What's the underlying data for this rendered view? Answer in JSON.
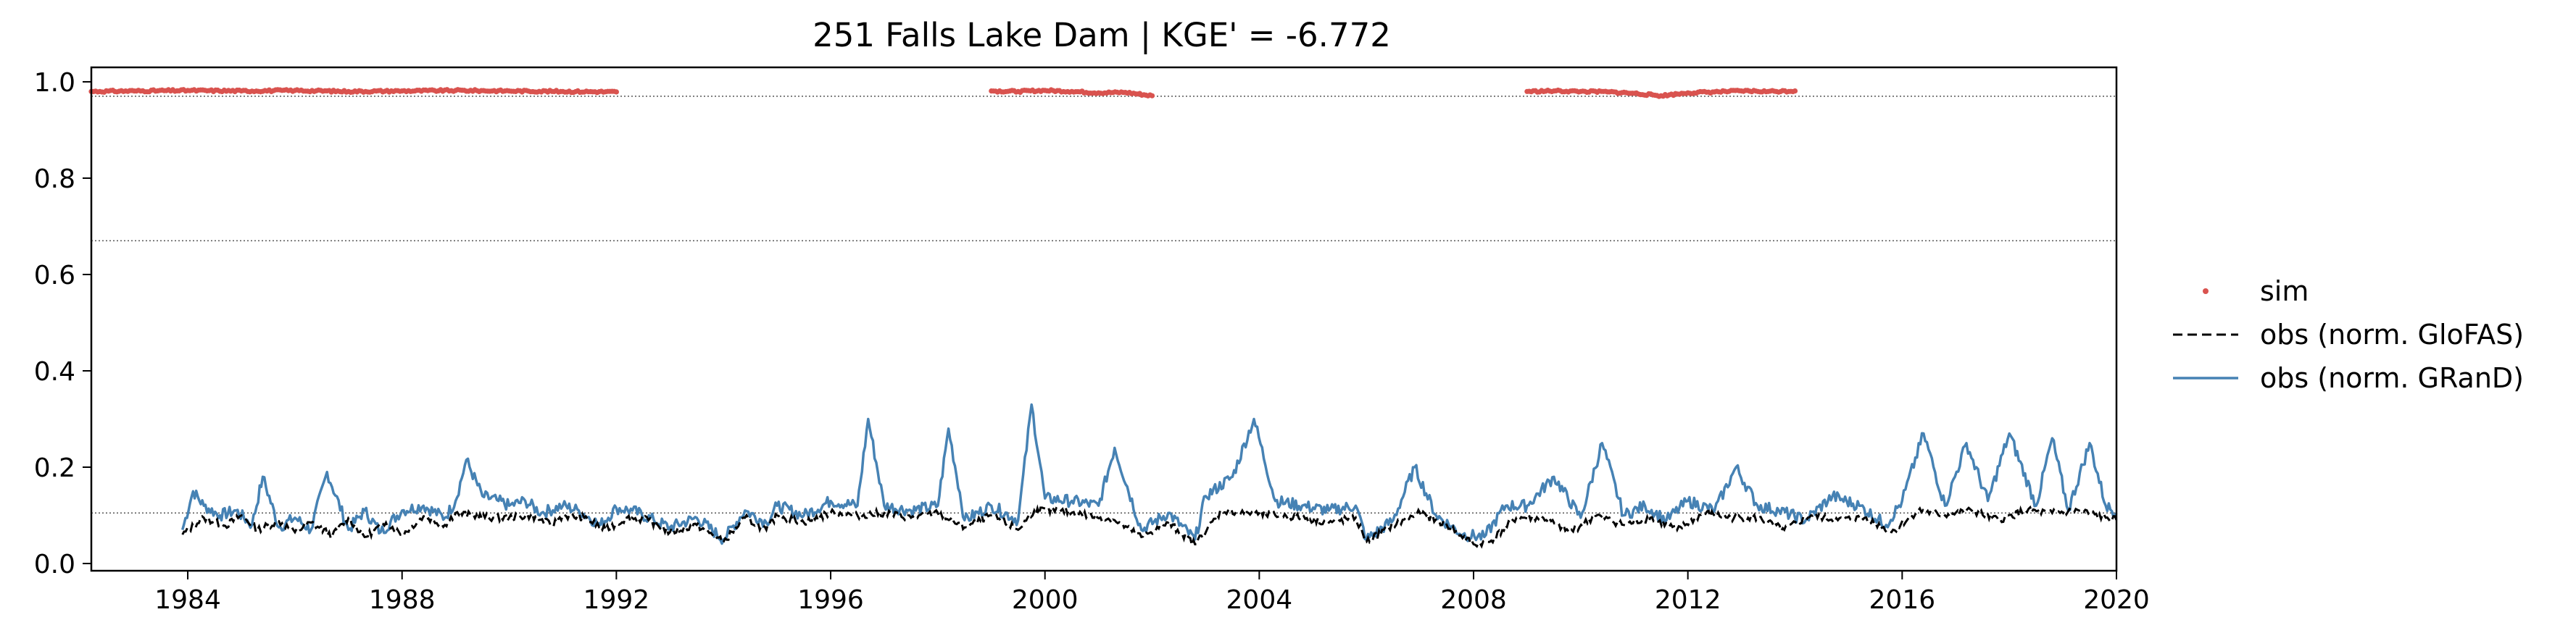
{
  "chart_data": {
    "type": "line",
    "title": "251  Falls Lake Dam | KGE' = -6.772",
    "xlabel": "",
    "ylabel": "",
    "xlim": [
      1982.2,
      2020.0
    ],
    "ylim": [
      -0.015,
      1.03
    ],
    "x_ticks": [
      1984,
      1988,
      1992,
      1996,
      2000,
      2004,
      2008,
      2012,
      2016,
      2020
    ],
    "x_tick_labels": [
      "1984",
      "1988",
      "1992",
      "1996",
      "2000",
      "2004",
      "2008",
      "2012",
      "2016",
      "2020"
    ],
    "y_ticks": [
      0.0,
      0.2,
      0.4,
      0.6,
      0.8,
      1.0
    ],
    "y_tick_labels": [
      "0.0",
      "0.2",
      "0.4",
      "0.6",
      "0.8",
      "1.0"
    ],
    "reference_lines": [
      0.97,
      0.67,
      0.105
    ],
    "grid": false,
    "legend_position": "right, outside plot",
    "legend": [
      "sim",
      "obs (norm. GloFAS)",
      "obs (norm. GRanD)"
    ],
    "colors": {
      "sim": "#d9534f",
      "glofas": "#000000",
      "grand": "#4682b4",
      "ref": "#555555"
    },
    "series": [
      {
        "name": "sim",
        "style": "points",
        "segments": [
          {
            "x": [
              1982.2,
              1983,
              1984,
              1985,
              1986,
              1987,
              1988,
              1989,
              1990,
              1991,
              1992.0
            ],
            "y": [
              0.98,
              0.981,
              0.982,
              0.981,
              0.982,
              0.98,
              0.981,
              0.982,
              0.981,
              0.98,
              0.979
            ]
          },
          {
            "x": [
              1999.0,
              1999.5,
              2000,
              2000.5,
              2001,
              2001.5,
              2002.0
            ],
            "y": [
              0.981,
              0.98,
              0.982,
              0.98,
              0.977,
              0.978,
              0.971
            ]
          },
          {
            "x": [
              2009.0,
              2009.5,
              2010,
              2010.5,
              2011,
              2011.5,
              2012,
              2012.5,
              2013,
              2013.5,
              2014.0
            ],
            "y": [
              0.98,
              0.981,
              0.98,
              0.979,
              0.976,
              0.971,
              0.977,
              0.979,
              0.981,
              0.98,
              0.981
            ]
          }
        ]
      },
      {
        "name": "obs (norm. GloFAS)",
        "style": "dashed",
        "x": [
          1983.9,
          1984.3,
          1984.7,
          1985.0,
          1985.3,
          1985.7,
          1986.0,
          1986.3,
          1986.7,
          1987.0,
          1987.3,
          1987.7,
          1988.0,
          1988.4,
          1988.8,
          1989.0,
          1989.3,
          1989.7,
          1990.0,
          1990.4,
          1990.8,
          1991.0,
          1991.4,
          1991.8,
          1992.2,
          1992.6,
          1993.0,
          1993.5,
          1994.0,
          1994.4,
          1994.8,
          1995.0,
          1995.5,
          1996.0,
          1996.5,
          1997.0,
          1997.5,
          1998.0,
          1998.5,
          1999.0,
          1999.5,
          1999.8,
          2000.3,
          2000.8,
          2001.3,
          2001.8,
          2002.3,
          2002.8,
          2003.3,
          2003.8,
          2004.3,
          2004.8,
          2005.3,
          2005.8,
          2006.0,
          2006.5,
          2007.0,
          2007.5,
          2008.0,
          2008.3,
          2008.8,
          2009.3,
          2009.8,
          2010.3,
          2010.8,
          2011.3,
          2011.8,
          2012.3,
          2012.8,
          2013.3,
          2013.8,
          2014.3,
          2014.8,
          2015.3,
          2015.8,
          2016.3,
          2016.8,
          2017.3,
          2017.8,
          2018.3,
          2018.8,
          2019.3,
          2019.8,
          2020.0
        ],
        "y": [
          0.06,
          0.095,
          0.078,
          0.1,
          0.07,
          0.088,
          0.065,
          0.085,
          0.058,
          0.095,
          0.055,
          0.085,
          0.06,
          0.098,
          0.08,
          0.105,
          0.1,
          0.095,
          0.095,
          0.1,
          0.08,
          0.1,
          0.095,
          0.07,
          0.095,
          0.09,
          0.065,
          0.08,
          0.045,
          0.095,
          0.07,
          0.1,
          0.085,
          0.105,
          0.1,
          0.105,
          0.095,
          0.105,
          0.075,
          0.1,
          0.07,
          0.11,
          0.11,
          0.1,
          0.09,
          0.055,
          0.085,
          0.04,
          0.11,
          0.105,
          0.1,
          0.095,
          0.085,
          0.095,
          0.045,
          0.08,
          0.105,
          0.08,
          0.04,
          0.045,
          0.095,
          0.095,
          0.065,
          0.1,
          0.08,
          0.095,
          0.07,
          0.105,
          0.095,
          0.095,
          0.07,
          0.1,
          0.09,
          0.095,
          0.065,
          0.11,
          0.1,
          0.11,
          0.09,
          0.11,
          0.105,
          0.11,
          0.095,
          0.09
        ]
      },
      {
        "name": "obs (norm. GRanD)",
        "style": "solid",
        "x": [
          1983.9,
          1984.1,
          1984.3,
          1984.6,
          1984.9,
          1985.2,
          1985.4,
          1985.7,
          1986.0,
          1986.3,
          1986.6,
          1987.0,
          1987.3,
          1987.6,
          1988.0,
          1988.4,
          1988.8,
          1989.0,
          1989.2,
          1989.5,
          1989.8,
          1990.0,
          1990.3,
          1990.6,
          1991.0,
          1991.3,
          1991.7,
          1992.0,
          1992.3,
          1992.7,
          1993.0,
          1993.5,
          1994.0,
          1994.4,
          1994.8,
          1995.0,
          1995.5,
          1996.0,
          1996.5,
          1996.7,
          1997.0,
          1997.5,
          1998.0,
          1998.2,
          1998.5,
          1999.0,
          1999.5,
          1999.75,
          2000.0,
          2000.5,
          2001.0,
          2001.3,
          2001.8,
          2002.3,
          2002.8,
          2003.0,
          2003.5,
          2003.9,
          2004.3,
          2004.8,
          2005.3,
          2005.8,
          2006.0,
          2006.5,
          2006.9,
          2007.3,
          2007.8,
          2008.2,
          2008.6,
          2009.0,
          2009.5,
          2010.0,
          2010.4,
          2010.8,
          2011.2,
          2011.6,
          2012.0,
          2012.5,
          2012.9,
          2013.3,
          2013.7,
          2014.2,
          2014.7,
          2015.2,
          2015.7,
          2016.0,
          2016.4,
          2016.8,
          2017.2,
          2017.6,
          2018.0,
          2018.5,
          2018.8,
          2019.1,
          2019.5,
          2019.8,
          2020.0
        ],
        "y": [
          0.07,
          0.15,
          0.12,
          0.1,
          0.11,
          0.08,
          0.18,
          0.075,
          0.095,
          0.07,
          0.19,
          0.07,
          0.11,
          0.065,
          0.11,
          0.12,
          0.095,
          0.13,
          0.215,
          0.14,
          0.13,
          0.12,
          0.13,
          0.105,
          0.12,
          0.11,
          0.08,
          0.115,
          0.11,
          0.09,
          0.075,
          0.095,
          0.05,
          0.11,
          0.085,
          0.12,
          0.1,
          0.13,
          0.12,
          0.3,
          0.12,
          0.11,
          0.12,
          0.28,
          0.09,
          0.12,
          0.09,
          0.33,
          0.135,
          0.13,
          0.12,
          0.24,
          0.07,
          0.105,
          0.05,
          0.14,
          0.18,
          0.3,
          0.13,
          0.12,
          0.11,
          0.12,
          0.05,
          0.09,
          0.2,
          0.1,
          0.06,
          0.055,
          0.12,
          0.12,
          0.18,
          0.095,
          0.25,
          0.1,
          0.12,
          0.09,
          0.13,
          0.11,
          0.2,
          0.12,
          0.11,
          0.09,
          0.14,
          0.12,
          0.08,
          0.13,
          0.27,
          0.12,
          0.25,
          0.13,
          0.27,
          0.12,
          0.26,
          0.11,
          0.25,
          0.12,
          0.105
        ]
      }
    ]
  }
}
